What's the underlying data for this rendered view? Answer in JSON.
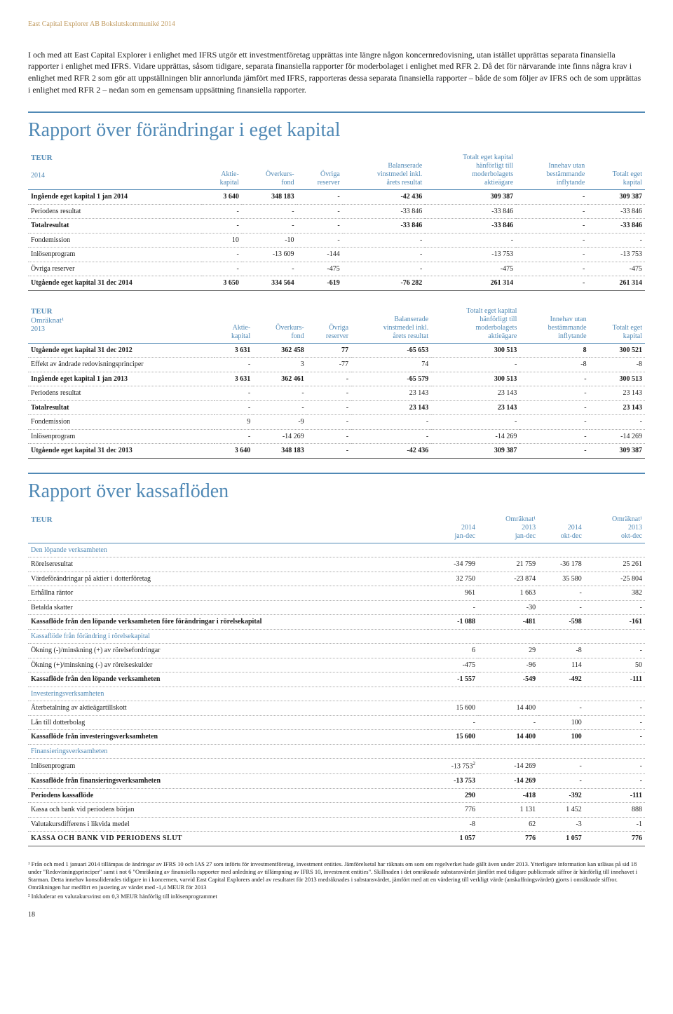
{
  "header": "East Capital Explorer AB Bokslutskommuniké 2014",
  "intro": "I och med att East Capital Explorer i enlighet med IFRS utgör ett investmentföretag upprättas inte längre någon koncernredovisning, utan istället upprättas separata finansiella rapporter i enlighet med IFRS. Vidare upprättas, såsom tidigare, separata finansiella rapporter för moderbolaget i enlighet med RFR 2. Då det för närvarande inte finns några krav i enlighet med RFR 2 som gör att uppställningen blir annorlunda jämfört med IFRS, rapporteras dessa separata finansiella rapporter – både de som följer av IFRS och de som upprättas i enlighet med RFR 2 – nedan som en gemensam uppsättning finansiella rapporter.",
  "h1a": "Rapport över förändringar i eget kapital",
  "h1b": "Rapport över kassaflöden",
  "teur": "TEUR",
  "omraknat": "Omräknat¹",
  "equity2014": {
    "year": "2014",
    "cols": [
      "Aktie-\nkapital",
      "Överkurs-\nfond",
      "Övriga\nreserver",
      "Balanserade\nvinstmedel inkl.\nårets resultat",
      "Totalt eget kapital\nhänförligt till\nmoderbolagets\naktieägare",
      "Innehav utan\nbestämmande\ninflytande",
      "Totalt eget\nkapital"
    ],
    "rows": [
      {
        "label": "Ingående eget kapital 1 jan 2014",
        "v": [
          "3 640",
          "348 183",
          "-",
          "-42 436",
          "309 387",
          "-",
          "309 387"
        ],
        "bold": true
      },
      {
        "label": "Periodens resultat",
        "v": [
          "-",
          "-",
          "-",
          "-33 846",
          "-33 846",
          "-",
          "-33 846"
        ]
      },
      {
        "label": "Totalresultat",
        "v": [
          "-",
          "-",
          "-",
          "-33 846",
          "-33 846",
          "-",
          "-33 846"
        ],
        "bold": true
      },
      {
        "label": "Fondemission",
        "v": [
          "10",
          "-10",
          "-",
          "-",
          "-",
          "-",
          "-"
        ]
      },
      {
        "label": "Inlösenprogram",
        "v": [
          "-",
          "-13 609",
          "-144",
          "-",
          "-13 753",
          "-",
          "-13 753"
        ]
      },
      {
        "label": "Övriga reserver",
        "v": [
          "-",
          "-",
          "-475",
          "-",
          "-475",
          "-",
          "-475"
        ]
      },
      {
        "label": "Utgående eget kapital 31 dec 2014",
        "v": [
          "3 650",
          "334 564",
          "-619",
          "-76 282",
          "261 314",
          "-",
          "261 314"
        ],
        "bold": true,
        "line": true
      }
    ]
  },
  "equity2013": {
    "year": "2013",
    "cols": [
      "Aktie-\nkapital",
      "Överkurs-\nfond",
      "Övriga\nreserver",
      "Balanserade\nvinstmedel inkl.\nårets resultat",
      "Totalt eget kapital\nhänförligt till\nmoderbolagets\naktieägare",
      "Innehav utan\nbestämmande\ninflytande",
      "Totalt eget\nkapital"
    ],
    "rows": [
      {
        "label": "Utgående eget kapital 31 dec 2012",
        "v": [
          "3 631",
          "362 458",
          "77",
          "-65 653",
          "300 513",
          "8",
          "300 521"
        ],
        "bold": true
      },
      {
        "label": "Effekt av ändrade redovisningsprinciper",
        "v": [
          "-",
          "3",
          "-77",
          "74",
          "-",
          "-8",
          "-8"
        ]
      },
      {
        "label": "Ingående eget kapital 1 jan 2013",
        "v": [
          "3 631",
          "362 461",
          "-",
          "-65 579",
          "300 513",
          "-",
          "300 513"
        ],
        "bold": true
      },
      {
        "label": "Periodens resultat",
        "v": [
          "-",
          "-",
          "-",
          "23 143",
          "23 143",
          "-",
          "23 143"
        ]
      },
      {
        "label": "Totalresultat",
        "v": [
          "-",
          "-",
          "-",
          "23 143",
          "23 143",
          "-",
          "23 143"
        ],
        "bold": true
      },
      {
        "label": "Fondemission",
        "v": [
          "9",
          "-9",
          "-",
          "-",
          "-",
          "-",
          "-"
        ]
      },
      {
        "label": "Inlösenprogram",
        "v": [
          "-",
          "-14 269",
          "-",
          "-",
          "-14 269",
          "-",
          "-14 269"
        ]
      },
      {
        "label": "Utgående eget kapital 31 dec 2013",
        "v": [
          "3 640",
          "348 183",
          "-",
          "-42 436",
          "309 387",
          "-",
          "309 387"
        ],
        "bold": true,
        "line": true
      }
    ]
  },
  "cashflow": {
    "cols": [
      "2014\njan-dec",
      "Omräknat¹\n2013\njan-dec",
      "2014\nokt-dec",
      "Omräknat¹\n2013\nokt-dec"
    ],
    "rows": [
      {
        "section": "Den löpande verksamheten"
      },
      {
        "label": "Rörelseresultat",
        "v": [
          "-34 799",
          "21 759",
          "-36 178",
          "25 261"
        ]
      },
      {
        "label": "Värdeförändringar på aktier i dotterföretag",
        "v": [
          "32 750",
          "-23 874",
          "35 580",
          "-25 804"
        ]
      },
      {
        "label": "Erhållna räntor",
        "v": [
          "961",
          "1 663",
          "-",
          "382"
        ]
      },
      {
        "label": "Betalda skatter",
        "v": [
          "-",
          "-30",
          "-",
          "-"
        ]
      },
      {
        "label": "Kassaflöde från den löpande verksamheten före förändringar i rörelsekapital",
        "v": [
          "-1 088",
          "-481",
          "-598",
          "-161"
        ],
        "bold": true
      },
      {
        "section": "Kassaflöde från förändring i rörelsekapital"
      },
      {
        "label": "Ökning (-)/minskning (+) av rörelsefordringar",
        "v": [
          "6",
          "29",
          "-8",
          "-"
        ]
      },
      {
        "label": "Ökning (+)/minskning (-) av rörelseskulder",
        "v": [
          "-475",
          "-96",
          "114",
          "50"
        ]
      },
      {
        "label": "Kassaflöde från den löpande verksamheten",
        "v": [
          "-1 557",
          "-549",
          "-492",
          "-111"
        ],
        "bold": true
      },
      {
        "section": "Investeringsverksamheten"
      },
      {
        "label": "Återbetalning av aktieägartillskott",
        "v": [
          "15 600",
          "14 400",
          "-",
          "-"
        ]
      },
      {
        "label": "Lån till dotterbolag",
        "v": [
          "-",
          "-",
          "100",
          "-"
        ]
      },
      {
        "label": "Kassaflöde från investeringsverksamheten",
        "v": [
          "15 600",
          "14 400",
          "100",
          "-"
        ],
        "bold": true
      },
      {
        "section": "Finansieringsverksamheten"
      },
      {
        "label": "Inlösenprogram",
        "v": [
          "-13 753²",
          "-14 269",
          "-",
          "-"
        ]
      },
      {
        "label": "Kassaflöde från finansieringsverksamheten",
        "v": [
          "-13 753",
          "-14 269",
          "-",
          "-"
        ],
        "bold": true
      },
      {
        "label": "Periodens kassaflöde",
        "v": [
          "290",
          "-418",
          "-392",
          "-111"
        ],
        "bold": true
      },
      {
        "label": "Kassa och bank vid periodens början",
        "v": [
          "776",
          "1 131",
          "1 452",
          "888"
        ]
      },
      {
        "label": "Valutakursdifferens i likvida medel",
        "v": [
          "-8",
          "62",
          "-3",
          "-1"
        ]
      },
      {
        "label": "KASSA OCH BANK VID PERIODENS SLUT",
        "v": [
          "1 057",
          "776",
          "1 057",
          "776"
        ],
        "bold": true,
        "line": true,
        "smallcaps": true
      }
    ]
  },
  "footnotes": [
    "¹ Från och med 1 januari 2014 tillämpas de ändringar av IFRS 10 och IAS 27 som införts för investmentföretag, investment entities. Jämförelsetal har räknats om som om regelverket hade gällt även under 2013. Ytterligare information kan utläsas på sid 18 under \"Redovisningsprinciper\" samt i not 6 \"Omräkning av finansiella rapporter med anledning av tillämpning av IFRS 10, investment entities\". Skillnaden i det omräknade substansvärdet jämfört med tidigare publicerade siffror är hänförlig till innehavet i Starman. Detta innehav konsoliderades tidigare in i koncernen, varvid East Capital Explorers andel av resultatet för 2013 medräknades i substansvärdet, jämfört med att en värdering till verkligt värde (anskaffningsvärdet) gjorts i omräknade siffror. Omräkningen har medfört en justering av värdet med -1,4 MEUR för 2013",
    "² Inkluderar en valutakursvinst om 0,3 MEUR hänförlig till inlösenprogrammet"
  ],
  "pageNum": "18"
}
